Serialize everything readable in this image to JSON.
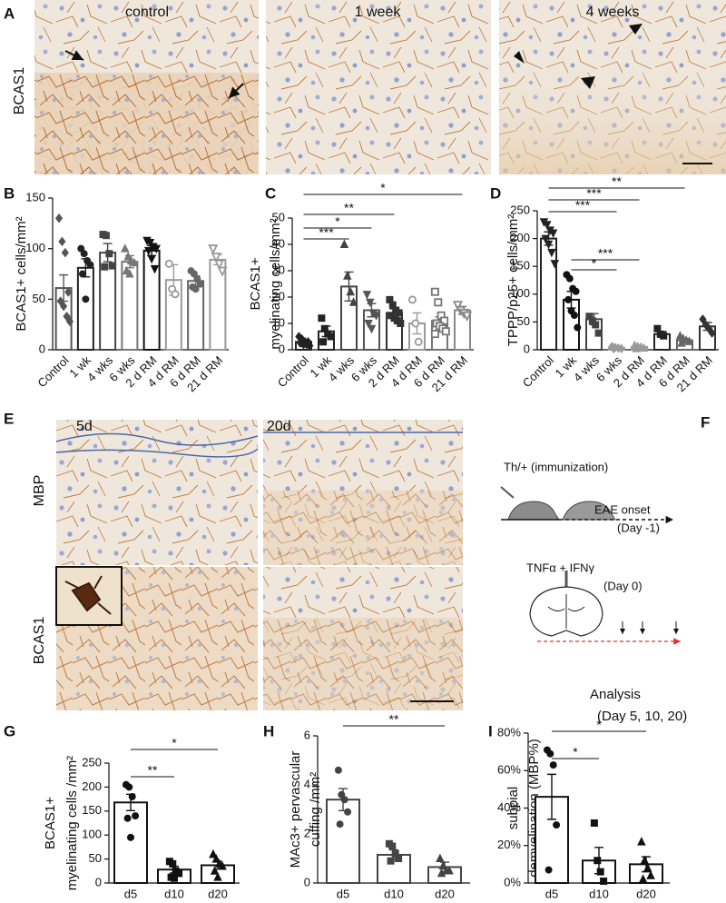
{
  "figure": {
    "panel_letters": [
      "A",
      "B",
      "C",
      "D",
      "E",
      "F",
      "G",
      "H",
      "I"
    ],
    "photos_A": {
      "columns": [
        "control",
        "1 week",
        "4 weeks"
      ],
      "row": "BCAS1"
    },
    "photos_E": {
      "columns": [
        "5d",
        "20d"
      ],
      "rows": [
        "MBP",
        "BCAS1"
      ]
    },
    "schematic": {
      "immunization": "Th/+ (immunization)",
      "onset": "EAE onset",
      "onset_day": "(Day  -1)",
      "injection": "TNFα + IFNγ",
      "injection_day": "(Day  0)",
      "analysis": "Analysis",
      "analysis_days": "(Day  5, 10, 20)"
    }
  },
  "chart_data": [
    {
      "type": "bar",
      "ylabel": [
        "BCAS1+ cells/mm²"
      ],
      "categories": [
        "Control",
        "1 wk",
        "4 wks",
        "6 wks",
        "2 d RM",
        "4 d RM",
        "6 d RM",
        "21 d RM"
      ],
      "values": [
        61,
        81,
        96,
        87,
        98,
        69,
        68,
        89
      ],
      "errors": [
        13,
        9,
        9,
        6,
        5,
        15,
        5,
        5
      ],
      "points": [
        [
          130,
          107,
          96,
          57,
          48,
          43,
          33,
          28
        ],
        [
          100,
          95,
          88,
          84,
          75,
          50
        ],
        [
          114,
          113,
          95,
          83,
          82
        ],
        [
          100,
          92,
          88,
          86,
          78,
          75
        ],
        [
          108,
          106,
          102,
          100,
          98,
          90,
          80
        ],
        [
          85,
          60,
          55
        ],
        [
          78,
          75,
          70,
          65,
          62,
          60
        ],
        [
          100,
          92,
          85,
          78
        ]
      ],
      "colors": [
        "#555555",
        "#222222",
        "#444444",
        "#777777",
        "#111111",
        "#999999",
        "#666666",
        "#999999"
      ],
      "markers": [
        "diamond",
        "circle",
        "square",
        "triangle",
        "down-triangle",
        "circle-open",
        "circle",
        "down-triangle-open"
      ],
      "ylim": [
        0,
        150
      ],
      "yticks": [
        0,
        50,
        100,
        150
      ],
      "brackets": []
    },
    {
      "type": "bar",
      "ylabel": [
        "BCAS1+",
        "myelinating  cells/mm²"
      ],
      "categories": [
        "Control",
        "1 wk",
        "4 wks",
        "6 wks",
        "2 d RM",
        "4 d RM",
        "6 d RM",
        "21 d RM"
      ],
      "values": [
        3,
        7,
        24,
        15,
        14,
        10,
        11,
        15
      ],
      "errors": [
        0.7,
        2,
        5.5,
        2.5,
        1.5,
        4,
        1.5,
        1.5
      ],
      "points": [
        [
          5,
          4,
          3,
          3,
          2.5,
          2,
          2,
          1.5
        ],
        [
          12,
          8,
          6,
          5,
          3
        ],
        [
          40,
          28,
          22,
          18
        ],
        [
          21,
          18,
          14,
          13,
          10,
          8
        ],
        [
          19,
          17,
          15,
          14,
          13,
          12,
          11,
          10
        ],
        [
          19,
          10,
          3
        ],
        [
          22,
          18,
          13,
          11,
          10,
          9,
          8,
          7,
          6
        ],
        [
          17,
          15,
          14,
          13
        ]
      ],
      "colors": [
        "#222222",
        "#222222",
        "#444444",
        "#555555",
        "#333333",
        "#999999",
        "#777777",
        "#888888"
      ],
      "markers": [
        "diamond",
        "square",
        "triangle",
        "down-triangle",
        "square",
        "circle-open",
        "square-open",
        "down-triangle-open"
      ],
      "ylim": [
        0,
        50
      ],
      "yticks": [
        0,
        10,
        20,
        30,
        40,
        50
      ],
      "brackets": [
        {
          "from": "Control",
          "to": "4 wks",
          "label": "***"
        },
        {
          "from": "Control",
          "to": "6 wks",
          "label": "*"
        },
        {
          "from": "Control",
          "to": "2 d RM",
          "label": "**"
        },
        {
          "from": "Control",
          "to": "21 d RM",
          "label": "*"
        }
      ]
    },
    {
      "type": "bar",
      "ylabel": [
        "TPPP/p25+ cells/mm²"
      ],
      "categories": [
        "Control",
        "1 wk",
        "4 wks",
        "6 wks",
        "2 d RM",
        "4 d RM",
        "6 d RM",
        "21 d RM"
      ],
      "values": [
        200,
        90,
        55,
        3,
        5,
        28,
        17,
        42
      ],
      "errors": [
        12,
        15,
        10,
        1,
        1.5,
        5,
        3,
        7
      ],
      "points": [
        [
          230,
          225,
          215,
          210,
          200,
          190,
          175,
          155
        ],
        [
          135,
          128,
          110,
          105,
          90,
          70,
          62,
          40
        ],
        [
          60,
          52,
          45,
          30
        ],
        [
          6,
          4,
          3,
          2,
          2
        ],
        [
          8,
          6,
          5,
          3,
          2
        ],
        [
          38,
          28,
          25
        ],
        [
          25,
          20,
          17,
          15,
          12
        ],
        [
          55,
          45,
          38,
          30
        ]
      ],
      "colors": [
        "#222222",
        "#111111",
        "#444444",
        "#999999",
        "#999999",
        "#222222",
        "#666666",
        "#333333"
      ],
      "markers": [
        "down-triangle",
        "circle",
        "square",
        "diamond",
        "triangle",
        "square",
        "triangle",
        "diamond"
      ],
      "ylim": [
        0,
        250
      ],
      "yticks": [
        0,
        50,
        100,
        150,
        200,
        250
      ],
      "brackets": [
        {
          "from": "Control",
          "to": "6 wks",
          "label": "***"
        },
        {
          "from": "Control",
          "to": "2 d RM",
          "label": "***"
        },
        {
          "from": "Control",
          "to": "6 d RM",
          "label": "**"
        },
        {
          "from": "1 wk",
          "to": "2 d RM",
          "label": "***"
        },
        {
          "from": "1 wk",
          "to": "6 wks",
          "label": "*"
        }
      ]
    },
    {
      "type": "bar",
      "ylabel": [
        "BCAS1+",
        "myelinating cells /mm²"
      ],
      "categories": [
        "d5",
        "d10",
        "d20"
      ],
      "values": [
        168,
        28,
        37
      ],
      "errors": [
        17,
        7,
        8
      ],
      "points": [
        [
          205,
          200,
          180,
          140,
          135,
          95
        ],
        [
          45,
          40,
          25,
          20,
          12,
          10
        ],
        [
          60,
          50,
          40,
          35,
          25,
          12
        ]
      ],
      "colors": [
        "#111111",
        "#111111",
        "#111111"
      ],
      "markers": [
        "circle",
        "square",
        "triangle"
      ],
      "ylim": [
        0,
        250
      ],
      "yticks": [
        0,
        50,
        100,
        150,
        200,
        250
      ],
      "brackets": [
        {
          "from": "d5",
          "to": "d10",
          "label": "**"
        },
        {
          "from": "d5",
          "to": "d20",
          "label": "*"
        }
      ]
    },
    {
      "type": "bar",
      "ylabel": [
        "MAc3+ pervascular",
        "cuffing /mm²"
      ],
      "categories": [
        "d5",
        "d10",
        "d20"
      ],
      "values": [
        3.4,
        1.15,
        0.65
      ],
      "errors": [
        0.45,
        0.2,
        0.2
      ],
      "points": [
        [
          4.6,
          3.6,
          3.4,
          2.9,
          2.4
        ],
        [
          1.6,
          1.5,
          1.2,
          1.0,
          0.9
        ],
        [
          1.0,
          0.7,
          0.5,
          0.5,
          0.4
        ]
      ],
      "colors": [
        "#444444",
        "#444444",
        "#444444"
      ],
      "markers": [
        "circle",
        "square",
        "triangle"
      ],
      "ylim": [
        0,
        6
      ],
      "yticks": [
        0,
        2,
        4,
        6
      ],
      "brackets": [
        {
          "from": "d5",
          "to": "d20",
          "label": "**"
        }
      ]
    },
    {
      "type": "bar",
      "ylabel": [
        "subpial",
        "demyelination (MBP%)"
      ],
      "categories": [
        "d5",
        "d10",
        "d20"
      ],
      "values": [
        46,
        12,
        10
      ],
      "errors": [
        12,
        7,
        4
      ],
      "points": [
        [
          71,
          69,
          63,
          31,
          7
        ],
        [
          32,
          12,
          6,
          1
        ],
        [
          22,
          12,
          8,
          4,
          2
        ]
      ],
      "colors": [
        "#111111",
        "#111111",
        "#111111"
      ],
      "markers": [
        "circle",
        "square",
        "triangle"
      ],
      "ylim": [
        0,
        80
      ],
      "yticks": [
        {
          "value": 0,
          "label": "0%"
        },
        {
          "value": 20,
          "label": "20%"
        },
        {
          "value": 40,
          "label": "40%"
        },
        {
          "value": 60,
          "label": "60%"
        },
        {
          "value": 80,
          "label": "80%"
        }
      ],
      "brackets": [
        {
          "from": "d5",
          "to": "d10",
          "label": "*"
        },
        {
          "from": "d5",
          "to": "d20",
          "label": "*"
        }
      ]
    }
  ]
}
